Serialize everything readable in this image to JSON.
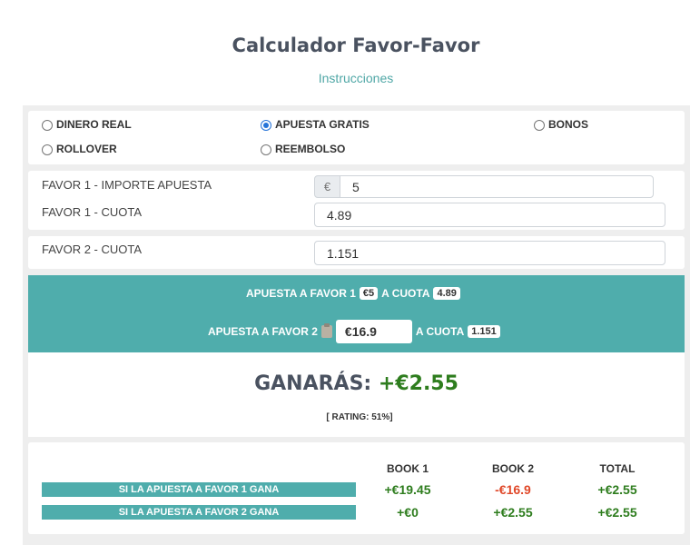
{
  "header": {
    "title": "Calculador Favor-Favor",
    "instructions_link": "Instrucciones"
  },
  "bet_types": [
    {
      "label": "DINERO REAL",
      "selected": false
    },
    {
      "label": "APUESTA GRATIS",
      "selected": true
    },
    {
      "label": "BONOS",
      "selected": false
    },
    {
      "label": "ROLLOVER",
      "selected": false
    },
    {
      "label": "REEMBOLSO",
      "selected": false
    }
  ],
  "inputs": {
    "favor1_amount_label": "FAVOR 1 - IMPORTE APUESTA",
    "currency_prefix": "€",
    "favor1_amount_value": "5",
    "favor1_odds_label": "FAVOR 1 - CUOTA",
    "favor1_odds_value": "4.89",
    "favor2_odds_label": "FAVOR 2 - CUOTA",
    "favor2_odds_value": "1.151"
  },
  "summary": {
    "line1_prefix": "APUESTA A FAVOR 1",
    "line1_amount": "€5",
    "line1_mid": "A CUOTA",
    "line1_odds": "4.89",
    "line2_prefix": "APUESTA A FAVOR 2",
    "line2_amount": "€16.9",
    "line2_mid": "A CUOTA",
    "line2_odds": "1.151",
    "copy_icon": "clipboard-icon"
  },
  "result": {
    "label": "GANARÁS:",
    "value": "+€2.55",
    "rating": "[ RATING: 51%]"
  },
  "table": {
    "headers": [
      "BOOK 1",
      "BOOK 2",
      "TOTAL"
    ],
    "rows": [
      {
        "label": "SI LA APUESTA A FAVOR 1 GANA",
        "book1": "+€19.45",
        "book2": "-€16.9",
        "total": "+€2.55"
      },
      {
        "label": "SI LA APUESTA A FAVOR 2 GANA",
        "book1": "+€0",
        "book2": "+€2.55",
        "total": "+€2.55"
      }
    ]
  },
  "colors": {
    "accent": "#4fadac",
    "positive": "#2e7d1e",
    "negative": "#e0492a",
    "radio_selected": "#2573d8"
  }
}
